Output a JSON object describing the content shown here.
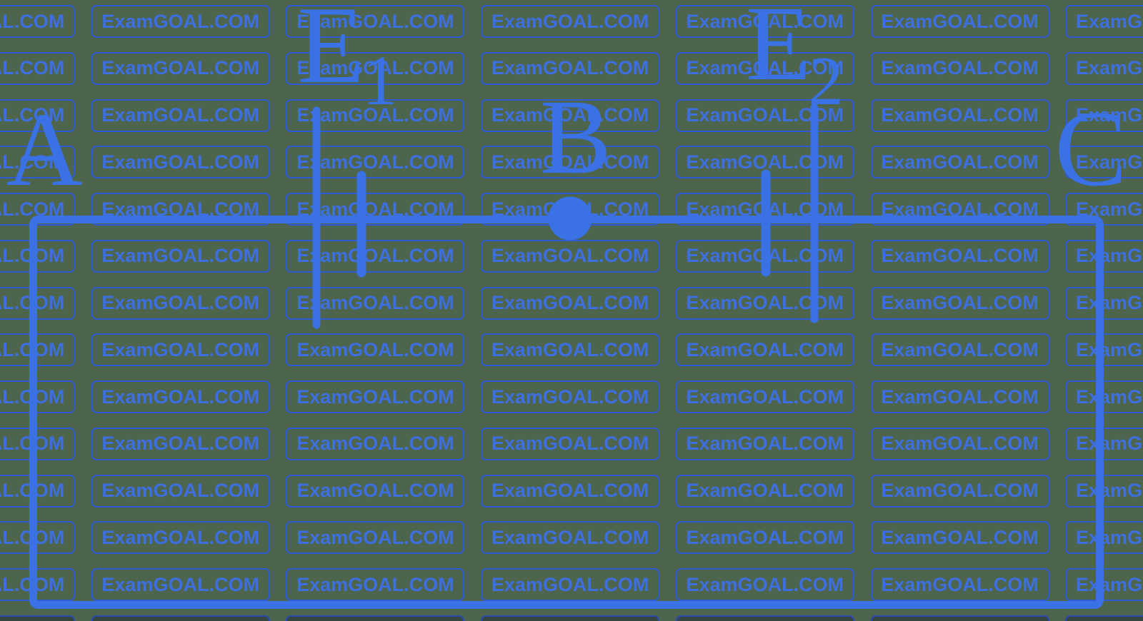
{
  "watermark": {
    "text": "ExamGOAL.COM",
    "rows": 14,
    "columns": 7
  },
  "diagram": {
    "type": "electric-circuit",
    "labels": {
      "point_a": "A",
      "point_b": "B",
      "point_c": "C",
      "emf1": {
        "base": "E",
        "sub": "1"
      },
      "emf2": {
        "base": "E",
        "sub": "2"
      }
    },
    "components": {
      "battery_e1": "cell-symbol",
      "battery_e2": "cell-symbol",
      "node_b": "filled-junction-dot",
      "loop": "rectangular-wire-loop"
    }
  },
  "colors": {
    "background": "#4d644d",
    "circuit_blue": "#3a71e4",
    "tile_border": "#2e5bd4",
    "tile_text": "#3e6fe0",
    "tile_dark_border": "#2a4aae"
  }
}
